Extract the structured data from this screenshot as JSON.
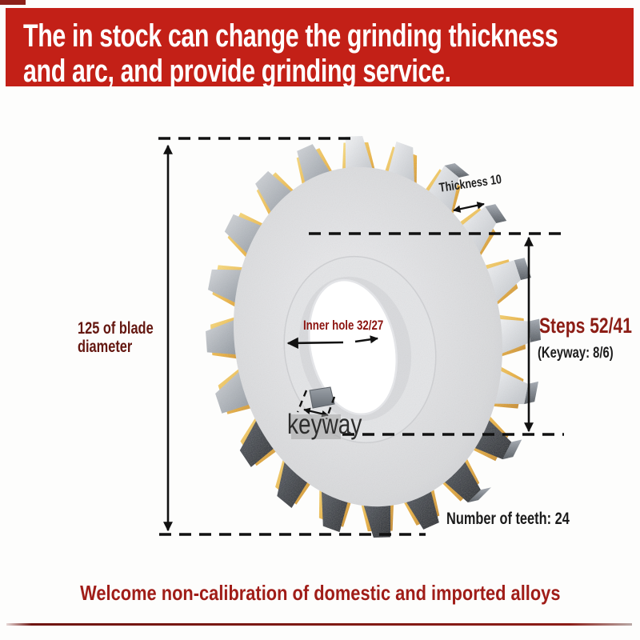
{
  "page": {
    "background": "#fdfdfc"
  },
  "banner": {
    "line1": "The in stock can change the grinding thickness",
    "line2": "and arc, and provide grinding service.",
    "bg_color": "#c32017",
    "text_color": "#ffffff"
  },
  "annotations": {
    "blade_diameter": {
      "line1": "125 of blade",
      "line2": "diameter",
      "color": "#641710"
    },
    "thickness": {
      "text": "Thickness 10",
      "color": "#1c1c1c"
    },
    "steps": {
      "text": "Steps 52/41",
      "color": "#8c1d15"
    },
    "keyway_size": {
      "text": "(Keyway: 8/6)",
      "color": "#1c1c1c"
    },
    "inner_hole": {
      "text": "Inner hole 32/27",
      "color": "#8c1410"
    },
    "keyway_label": {
      "text": "keyway",
      "color": "#2d2d2d"
    },
    "teeth_count": {
      "text": "Number of teeth: 24",
      "color": "#1b1b1b"
    }
  },
  "footer": {
    "text": "Welcome non-calibration of domestic and imported alloys",
    "color": "#a01d18",
    "rule_color": "#8c1d17"
  },
  "specs": {
    "blade_diameter": "125",
    "thickness": "10",
    "steps": "52/41",
    "keyway": "8/6",
    "inner_hole": "32/27",
    "number_of_teeth": "24"
  }
}
